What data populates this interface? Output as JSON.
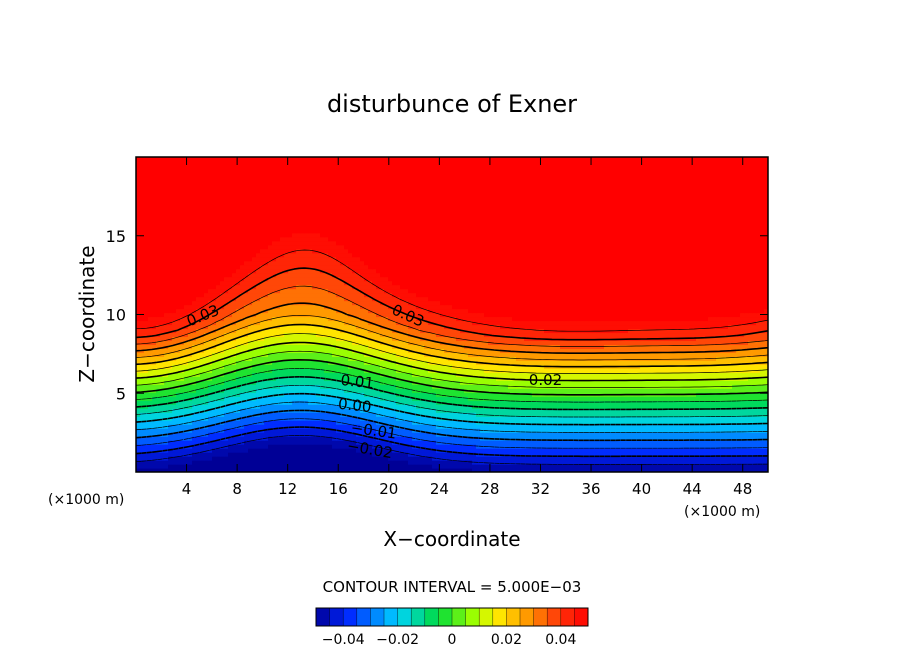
{
  "chart_data": {
    "type": "heatmap",
    "title": "disturbunce of Exner",
    "xlabel": "X−coordinate",
    "ylabel": "Z−coordinate",
    "x_unit_left": "(×1000 m)",
    "x_unit_right": "(×1000 m)",
    "xlim": [
      0,
      50
    ],
    "ylim": [
      0,
      20
    ],
    "x_ticks": [
      4,
      8,
      12,
      16,
      20,
      24,
      28,
      32,
      36,
      40,
      44,
      48
    ],
    "y_ticks": [
      5,
      10,
      15
    ],
    "contour_interval_label": "CONTOUR INTERVAL = 5.000E−03",
    "contour_labels": [
      {
        "text": "0.03",
        "x": 5.3,
        "z": 9.9,
        "angle": -22
      },
      {
        "text": "0.03",
        "x": 21.5,
        "z": 9.9,
        "angle": 24
      },
      {
        "text": "0.02",
        "x": 32.4,
        "z": 5.8,
        "angle": 0
      },
      {
        "text": "0.01",
        "x": 17.5,
        "z": 5.7,
        "angle": 6
      },
      {
        "text": "0.00",
        "x": 17.3,
        "z": 4.2,
        "angle": 6
      },
      {
        "text": "−0.01",
        "x": 18.8,
        "z": 2.6,
        "angle": 8
      },
      {
        "text": "−0.02",
        "x": 18.5,
        "z": 1.4,
        "angle": 10
      }
    ],
    "colorbar": {
      "min": -0.05,
      "max": 0.05,
      "ticks": [
        {
          "value": -0.04,
          "label": "−0.04"
        },
        {
          "value": -0.02,
          "label": "−0.02"
        },
        {
          "value": 0,
          "label": "0"
        },
        {
          "value": 0.02,
          "label": "0.02"
        },
        {
          "value": 0.04,
          "label": "0.04"
        }
      ]
    }
  }
}
